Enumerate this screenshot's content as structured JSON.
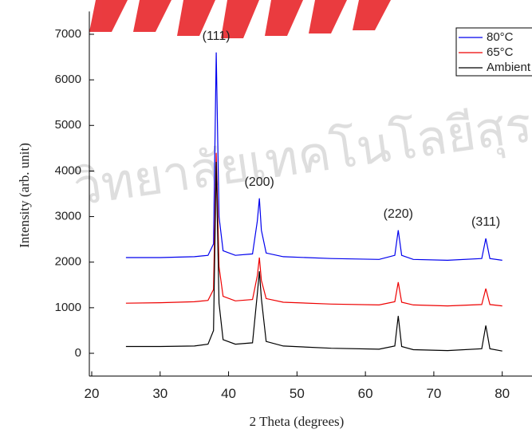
{
  "chart_data": {
    "type": "line",
    "watermark": "วิทยาลัยเทคโนโลยีสุร",
    "xlabel": "2 Theta (degrees)",
    "ylabel": "Intensity (arb. unit)",
    "x": [
      25,
      30,
      35,
      37,
      37.8,
      38.2,
      38.6,
      39.2,
      41,
      43.5,
      44.2,
      44.5,
      44.8,
      45.5,
      48,
      55,
      62,
      64.3,
      64.8,
      65.3,
      67,
      72,
      77,
      77.6,
      78.2,
      80
    ],
    "series": [
      {
        "name": "80°C",
        "color": "#0000ee",
        "values": [
          2100,
          2100,
          2120,
          2150,
          2400,
          6600,
          3000,
          2250,
          2150,
          2180,
          2900,
          3400,
          2700,
          2200,
          2120,
          2080,
          2060,
          2150,
          2700,
          2150,
          2060,
          2040,
          2080,
          2520,
          2080,
          2040
        ]
      },
      {
        "name": "65°C",
        "color": "#ee0000",
        "values": [
          1100,
          1110,
          1130,
          1160,
          1400,
          4400,
          1900,
          1250,
          1150,
          1180,
          1700,
          2100,
          1600,
          1200,
          1120,
          1080,
          1060,
          1130,
          1560,
          1120,
          1060,
          1040,
          1070,
          1420,
          1070,
          1040
        ]
      },
      {
        "name": "Ambient",
        "color": "#000000",
        "values": [
          150,
          150,
          160,
          200,
          500,
          4200,
          1100,
          300,
          200,
          230,
          1300,
          1800,
          1200,
          260,
          160,
          110,
          90,
          160,
          820,
          150,
          80,
          60,
          100,
          610,
          100,
          50
        ]
      }
    ],
    "annotations": [
      "(111)",
      "(200)",
      "(220)",
      "(311)"
    ],
    "xlim": [
      20,
      84
    ],
    "xticks": [
      20,
      30,
      40,
      50,
      60,
      70,
      80
    ],
    "ylim": [
      -500,
      7500
    ],
    "yticks": [
      0,
      1000,
      2000,
      3000,
      4000,
      5000,
      6000,
      7000
    ],
    "legend": "upper right"
  }
}
